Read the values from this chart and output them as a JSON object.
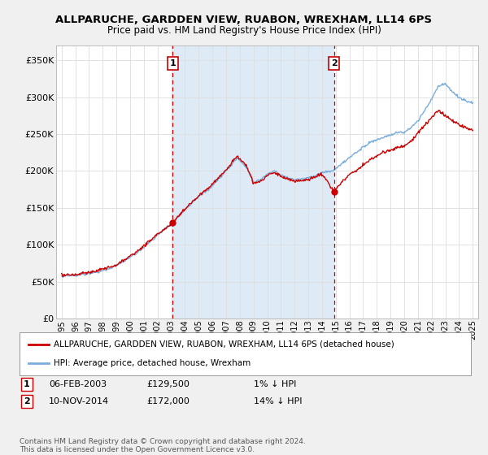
{
  "title": "ALLPARUCHE, GARDDEN VIEW, RUABON, WREXHAM, LL14 6PS",
  "subtitle": "Price paid vs. HM Land Registry's House Price Index (HPI)",
  "ylim": [
    0,
    370000
  ],
  "yticks": [
    0,
    50000,
    100000,
    150000,
    200000,
    250000,
    300000,
    350000
  ],
  "ytick_labels": [
    "£0",
    "£50K",
    "£100K",
    "£150K",
    "£200K",
    "£250K",
    "£300K",
    "£350K"
  ],
  "sale1_date": 2003.1,
  "sale1_price": 129500,
  "sale1_label": "1",
  "sale2_date": 2014.87,
  "sale2_price": 172000,
  "sale2_label": "2",
  "hpi_color": "#7aaddc",
  "price_color": "#cc0000",
  "shade_color": "#deeaf5",
  "dashed_line_color": "#cc0000",
  "background_color": "#f0f0f0",
  "plot_bg_color": "#ffffff",
  "legend_label1": "ALLPARUCHE, GARDDEN VIEW, RUABON, WREXHAM, LL14 6PS (detached house)",
  "legend_label2": "HPI: Average price, detached house, Wrexham",
  "sale1_col1": "06-FEB-2003",
  "sale1_col2": "£129,500",
  "sale1_col3": "1% ↓ HPI",
  "sale2_col1": "10-NOV-2014",
  "sale2_col2": "£172,000",
  "sale2_col3": "14% ↓ HPI",
  "footer": "Contains HM Land Registry data © Crown copyright and database right 2024.\nThis data is licensed under the Open Government Licence v3.0.",
  "hpi_breakpoints": [
    [
      1995.0,
      58000
    ],
    [
      1996.0,
      59000
    ],
    [
      1997.0,
      61000
    ],
    [
      1998.0,
      65000
    ],
    [
      1999.0,
      72000
    ],
    [
      2000.0,
      83000
    ],
    [
      2001.0,
      97000
    ],
    [
      2002.0,
      113000
    ],
    [
      2003.1,
      130000
    ],
    [
      2004.0,
      148000
    ],
    [
      2005.0,
      165000
    ],
    [
      2006.0,
      180000
    ],
    [
      2007.0,
      200000
    ],
    [
      2007.8,
      218000
    ],
    [
      2008.5,
      205000
    ],
    [
      2009.0,
      185000
    ],
    [
      2009.5,
      188000
    ],
    [
      2010.0,
      196000
    ],
    [
      2010.5,
      200000
    ],
    [
      2011.0,
      194000
    ],
    [
      2012.0,
      187000
    ],
    [
      2013.0,
      190000
    ],
    [
      2013.5,
      193000
    ],
    [
      2014.0,
      197000
    ],
    [
      2014.87,
      200000
    ],
    [
      2015.5,
      210000
    ],
    [
      2016.0,
      218000
    ],
    [
      2016.5,
      225000
    ],
    [
      2017.0,
      232000
    ],
    [
      2017.5,
      238000
    ],
    [
      2018.0,
      242000
    ],
    [
      2018.5,
      245000
    ],
    [
      2019.0,
      248000
    ],
    [
      2019.5,
      252000
    ],
    [
      2020.0,
      252000
    ],
    [
      2020.5,
      258000
    ],
    [
      2021.0,
      268000
    ],
    [
      2021.5,
      282000
    ],
    [
      2022.0,
      298000
    ],
    [
      2022.5,
      315000
    ],
    [
      2023.0,
      318000
    ],
    [
      2023.5,
      308000
    ],
    [
      2024.0,
      300000
    ],
    [
      2024.5,
      295000
    ],
    [
      2025.0,
      292000
    ]
  ],
  "price_breakpoints": [
    [
      1995.0,
      59000
    ],
    [
      1996.0,
      60000
    ],
    [
      1997.0,
      63000
    ],
    [
      1998.0,
      67000
    ],
    [
      1999.0,
      73000
    ],
    [
      2000.0,
      85000
    ],
    [
      2001.0,
      99000
    ],
    [
      2002.0,
      115000
    ],
    [
      2003.1,
      129500
    ],
    [
      2004.0,
      149000
    ],
    [
      2005.0,
      166000
    ],
    [
      2006.0,
      182000
    ],
    [
      2007.0,
      202000
    ],
    [
      2007.8,
      220000
    ],
    [
      2008.5,
      207000
    ],
    [
      2009.0,
      183000
    ],
    [
      2009.5,
      186000
    ],
    [
      2010.0,
      194000
    ],
    [
      2010.5,
      198000
    ],
    [
      2011.0,
      192000
    ],
    [
      2012.0,
      185000
    ],
    [
      2013.0,
      188000
    ],
    [
      2013.5,
      191000
    ],
    [
      2014.0,
      195000
    ],
    [
      2014.87,
      172000
    ],
    [
      2015.5,
      185000
    ],
    [
      2016.0,
      195000
    ],
    [
      2016.5,
      200000
    ],
    [
      2017.0,
      208000
    ],
    [
      2017.5,
      215000
    ],
    [
      2018.0,
      220000
    ],
    [
      2018.5,
      225000
    ],
    [
      2019.0,
      228000
    ],
    [
      2019.5,
      232000
    ],
    [
      2020.0,
      234000
    ],
    [
      2020.5,
      240000
    ],
    [
      2021.0,
      252000
    ],
    [
      2021.5,
      262000
    ],
    [
      2022.0,
      272000
    ],
    [
      2022.5,
      282000
    ],
    [
      2023.0,
      275000
    ],
    [
      2023.5,
      268000
    ],
    [
      2024.0,
      262000
    ],
    [
      2024.5,
      258000
    ],
    [
      2025.0,
      255000
    ]
  ]
}
